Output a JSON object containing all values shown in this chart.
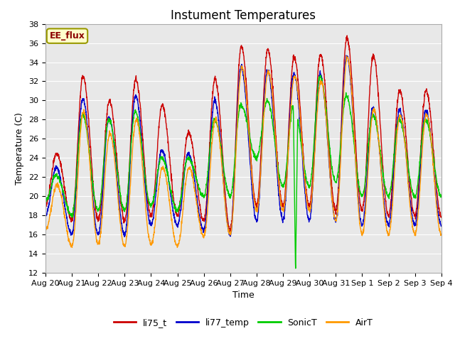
{
  "title": "Instument Temperatures",
  "ylabel": "Temperature (C)",
  "xlabel": "Time",
  "ylim": [
    12,
    38
  ],
  "yticks": [
    12,
    14,
    16,
    18,
    20,
    22,
    24,
    26,
    28,
    30,
    32,
    34,
    36,
    38
  ],
  "site_label": "EE_flux",
  "legend_entries": [
    "li75_t",
    "li77_temp",
    "SonicT",
    "AirT"
  ],
  "line_colors": [
    "#cc0000",
    "#0000cc",
    "#00cc00",
    "#ff9900"
  ],
  "bg_color": "#e8e8e8",
  "fig_color": "#ffffff",
  "title_fontsize": 12,
  "label_fontsize": 9,
  "tick_fontsize": 8,
  "peaks_li75": [
    24.5,
    32.5,
    30.0,
    32.2,
    29.5,
    26.7,
    32.2,
    35.7,
    35.3,
    34.5,
    34.8,
    36.5,
    34.7,
    31.0
  ],
  "troughs_li75": [
    19.0,
    17.5,
    17.5,
    17.5,
    18.0,
    18.0,
    17.5,
    16.5,
    19.0,
    19.0,
    19.0,
    18.5,
    18.5,
    18.0
  ],
  "peaks_li77": [
    23.0,
    30.2,
    28.2,
    30.5,
    24.8,
    24.5,
    30.0,
    33.5,
    33.2,
    32.8,
    32.8,
    34.7,
    29.3,
    29.0
  ],
  "troughs_li77": [
    18.0,
    16.0,
    16.0,
    16.0,
    17.0,
    17.0,
    16.5,
    16.0,
    17.5,
    17.5,
    17.5,
    17.5,
    17.0,
    17.0
  ],
  "peaks_sonic": [
    22.2,
    28.5,
    28.0,
    28.8,
    24.0,
    24.0,
    28.0,
    29.5,
    30.0,
    29.5,
    32.5,
    30.5,
    28.5,
    28.0
  ],
  "troughs_sonic": [
    19.5,
    18.0,
    18.5,
    18.5,
    19.0,
    18.5,
    20.0,
    20.0,
    24.0,
    21.0,
    21.0,
    21.5,
    20.0,
    20.0
  ],
  "peaks_air": [
    21.2,
    28.8,
    26.5,
    28.0,
    23.0,
    23.0,
    28.0,
    33.5,
    33.0,
    32.5,
    32.0,
    34.5,
    29.0,
    28.5
  ],
  "troughs_air": [
    16.5,
    14.8,
    15.0,
    14.8,
    15.0,
    14.8,
    15.8,
    16.0,
    18.5,
    18.5,
    18.5,
    17.5,
    16.0,
    16.0
  ]
}
